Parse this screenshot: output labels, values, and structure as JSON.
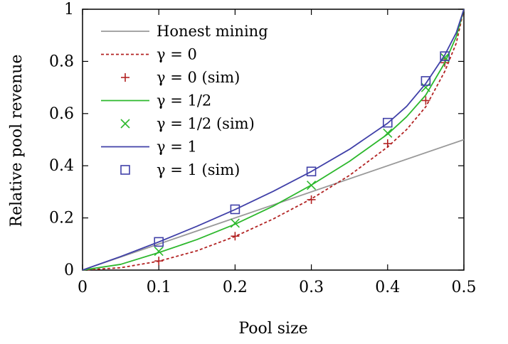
{
  "chart_data": {
    "type": "line",
    "xlabel": "Pool size",
    "ylabel": "Relative pool revenue",
    "xlim": [
      0,
      0.5
    ],
    "ylim": [
      0,
      1
    ],
    "x_ticks": [
      "0",
      "0.1",
      "0.2",
      "0.3",
      "0.4",
      "0.5"
    ],
    "y_ticks": [
      "0",
      "0.2",
      "0.4",
      "0.6",
      "0.8",
      "1"
    ],
    "legend_position": "top-left",
    "grid": false,
    "series": [
      {
        "name": "Honest mining",
        "kind": "line",
        "style": "solid",
        "color": "#999999",
        "points": [
          [
            0,
            0
          ],
          [
            0.5,
            0.5
          ]
        ]
      },
      {
        "name": "γ = 0",
        "kind": "line",
        "style": "dashed",
        "color": "#b22222",
        "points": [
          [
            0,
            0
          ],
          [
            0.05,
            0.009
          ],
          [
            0.1,
            0.034
          ],
          [
            0.15,
            0.074
          ],
          [
            0.2,
            0.129
          ],
          [
            0.25,
            0.196
          ],
          [
            0.3,
            0.273
          ],
          [
            0.35,
            0.363
          ],
          [
            0.4,
            0.472
          ],
          [
            0.425,
            0.539
          ],
          [
            0.45,
            0.626
          ],
          [
            0.475,
            0.762
          ],
          [
            0.49,
            0.87
          ],
          [
            0.5,
            1.0
          ]
        ]
      },
      {
        "name": "γ = 0 (sim)",
        "kind": "markers",
        "marker": "plus",
        "color": "#b22222",
        "points": [
          [
            0.1,
            0.035
          ],
          [
            0.2,
            0.13
          ],
          [
            0.3,
            0.27
          ],
          [
            0.4,
            0.485
          ],
          [
            0.45,
            0.65
          ],
          [
            0.475,
            0.795
          ]
        ]
      },
      {
        "name": "γ = 1/2",
        "kind": "line",
        "style": "solid",
        "color": "#2db82d",
        "points": [
          [
            0,
            0
          ],
          [
            0.05,
            0.022
          ],
          [
            0.1,
            0.067
          ],
          [
            0.15,
            0.117
          ],
          [
            0.2,
            0.176
          ],
          [
            0.25,
            0.245
          ],
          [
            0.3,
            0.326
          ],
          [
            0.35,
            0.417
          ],
          [
            0.4,
            0.521
          ],
          [
            0.425,
            0.588
          ],
          [
            0.45,
            0.671
          ],
          [
            0.475,
            0.795
          ],
          [
            0.49,
            0.895
          ],
          [
            0.5,
            1.0
          ]
        ]
      },
      {
        "name": "γ = 1/2 (sim)",
        "kind": "markers",
        "marker": "x",
        "color": "#2db82d",
        "points": [
          [
            0.1,
            0.072
          ],
          [
            0.2,
            0.18
          ],
          [
            0.3,
            0.325
          ],
          [
            0.4,
            0.525
          ],
          [
            0.45,
            0.7
          ],
          [
            0.475,
            0.815
          ]
        ]
      },
      {
        "name": "γ = 1",
        "kind": "line",
        "style": "solid",
        "color": "#4040a8",
        "points": [
          [
            0,
            0
          ],
          [
            0.05,
            0.052
          ],
          [
            0.1,
            0.108
          ],
          [
            0.15,
            0.168
          ],
          [
            0.2,
            0.232
          ],
          [
            0.25,
            0.302
          ],
          [
            0.3,
            0.378
          ],
          [
            0.35,
            0.463
          ],
          [
            0.4,
            0.563
          ],
          [
            0.425,
            0.628
          ],
          [
            0.45,
            0.715
          ],
          [
            0.475,
            0.825
          ],
          [
            0.49,
            0.91
          ],
          [
            0.5,
            1.0
          ]
        ]
      },
      {
        "name": "γ = 1 (sim)",
        "kind": "markers",
        "marker": "square",
        "color": "#4040a8",
        "points": [
          [
            0.1,
            0.108
          ],
          [
            0.2,
            0.233
          ],
          [
            0.3,
            0.378
          ],
          [
            0.4,
            0.565
          ],
          [
            0.45,
            0.725
          ],
          [
            0.475,
            0.82
          ]
        ]
      }
    ]
  }
}
